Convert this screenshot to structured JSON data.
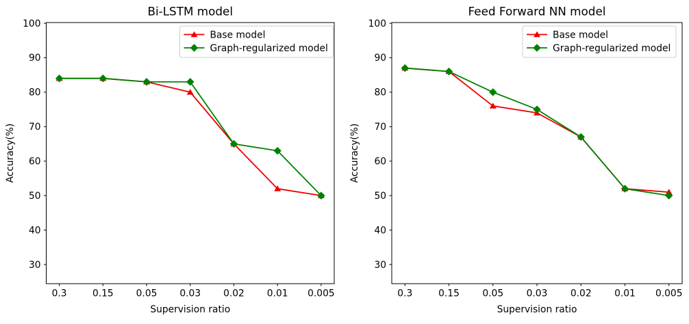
{
  "figure": {
    "background": "#ffffff",
    "series_colors": {
      "base": "#ee0000",
      "graph_regularized": "#008000"
    },
    "axis_color": "#000000",
    "legend_border_color": "#cccccc"
  },
  "chart_data": [
    {
      "type": "line",
      "title": "Bi-LSTM model",
      "xlabel": "Supervision ratio",
      "ylabel": "Accuracy(%)",
      "categories": [
        "0.3",
        "0.15",
        "0.05",
        "0.03",
        "0.02",
        "0.01",
        "0.005"
      ],
      "series": [
        {
          "name": "Base model",
          "color": "#ee0000",
          "marker": "triangle",
          "values": [
            84,
            84,
            83,
            80,
            65,
            52,
            50
          ]
        },
        {
          "name": "Graph-regularized model",
          "color": "#008000",
          "marker": "diamond",
          "values": [
            84,
            84,
            83,
            83,
            65,
            63,
            50
          ]
        }
      ],
      "yticks": [
        30,
        40,
        50,
        60,
        70,
        80,
        90,
        100
      ],
      "ylim": [
        24.45,
        100.2
      ],
      "grid": false,
      "legend_position": "upper right"
    },
    {
      "type": "line",
      "title": "Feed Forward NN model",
      "xlabel": "Supervision ratio",
      "ylabel": "Accuracy(%)",
      "categories": [
        "0.3",
        "0.15",
        "0.05",
        "0.03",
        "0.02",
        "0.01",
        "0.005"
      ],
      "series": [
        {
          "name": "Base model",
          "color": "#ee0000",
          "marker": "triangle",
          "values": [
            87,
            86,
            76,
            74,
            67,
            52,
            51
          ]
        },
        {
          "name": "Graph-regularized model",
          "color": "#008000",
          "marker": "diamond",
          "values": [
            87,
            86,
            80,
            75,
            67,
            52,
            50
          ]
        }
      ],
      "yticks": [
        30,
        40,
        50,
        60,
        70,
        80,
        90,
        100
      ],
      "ylim": [
        24.45,
        100.2
      ],
      "grid": false,
      "legend_position": "upper right"
    }
  ]
}
